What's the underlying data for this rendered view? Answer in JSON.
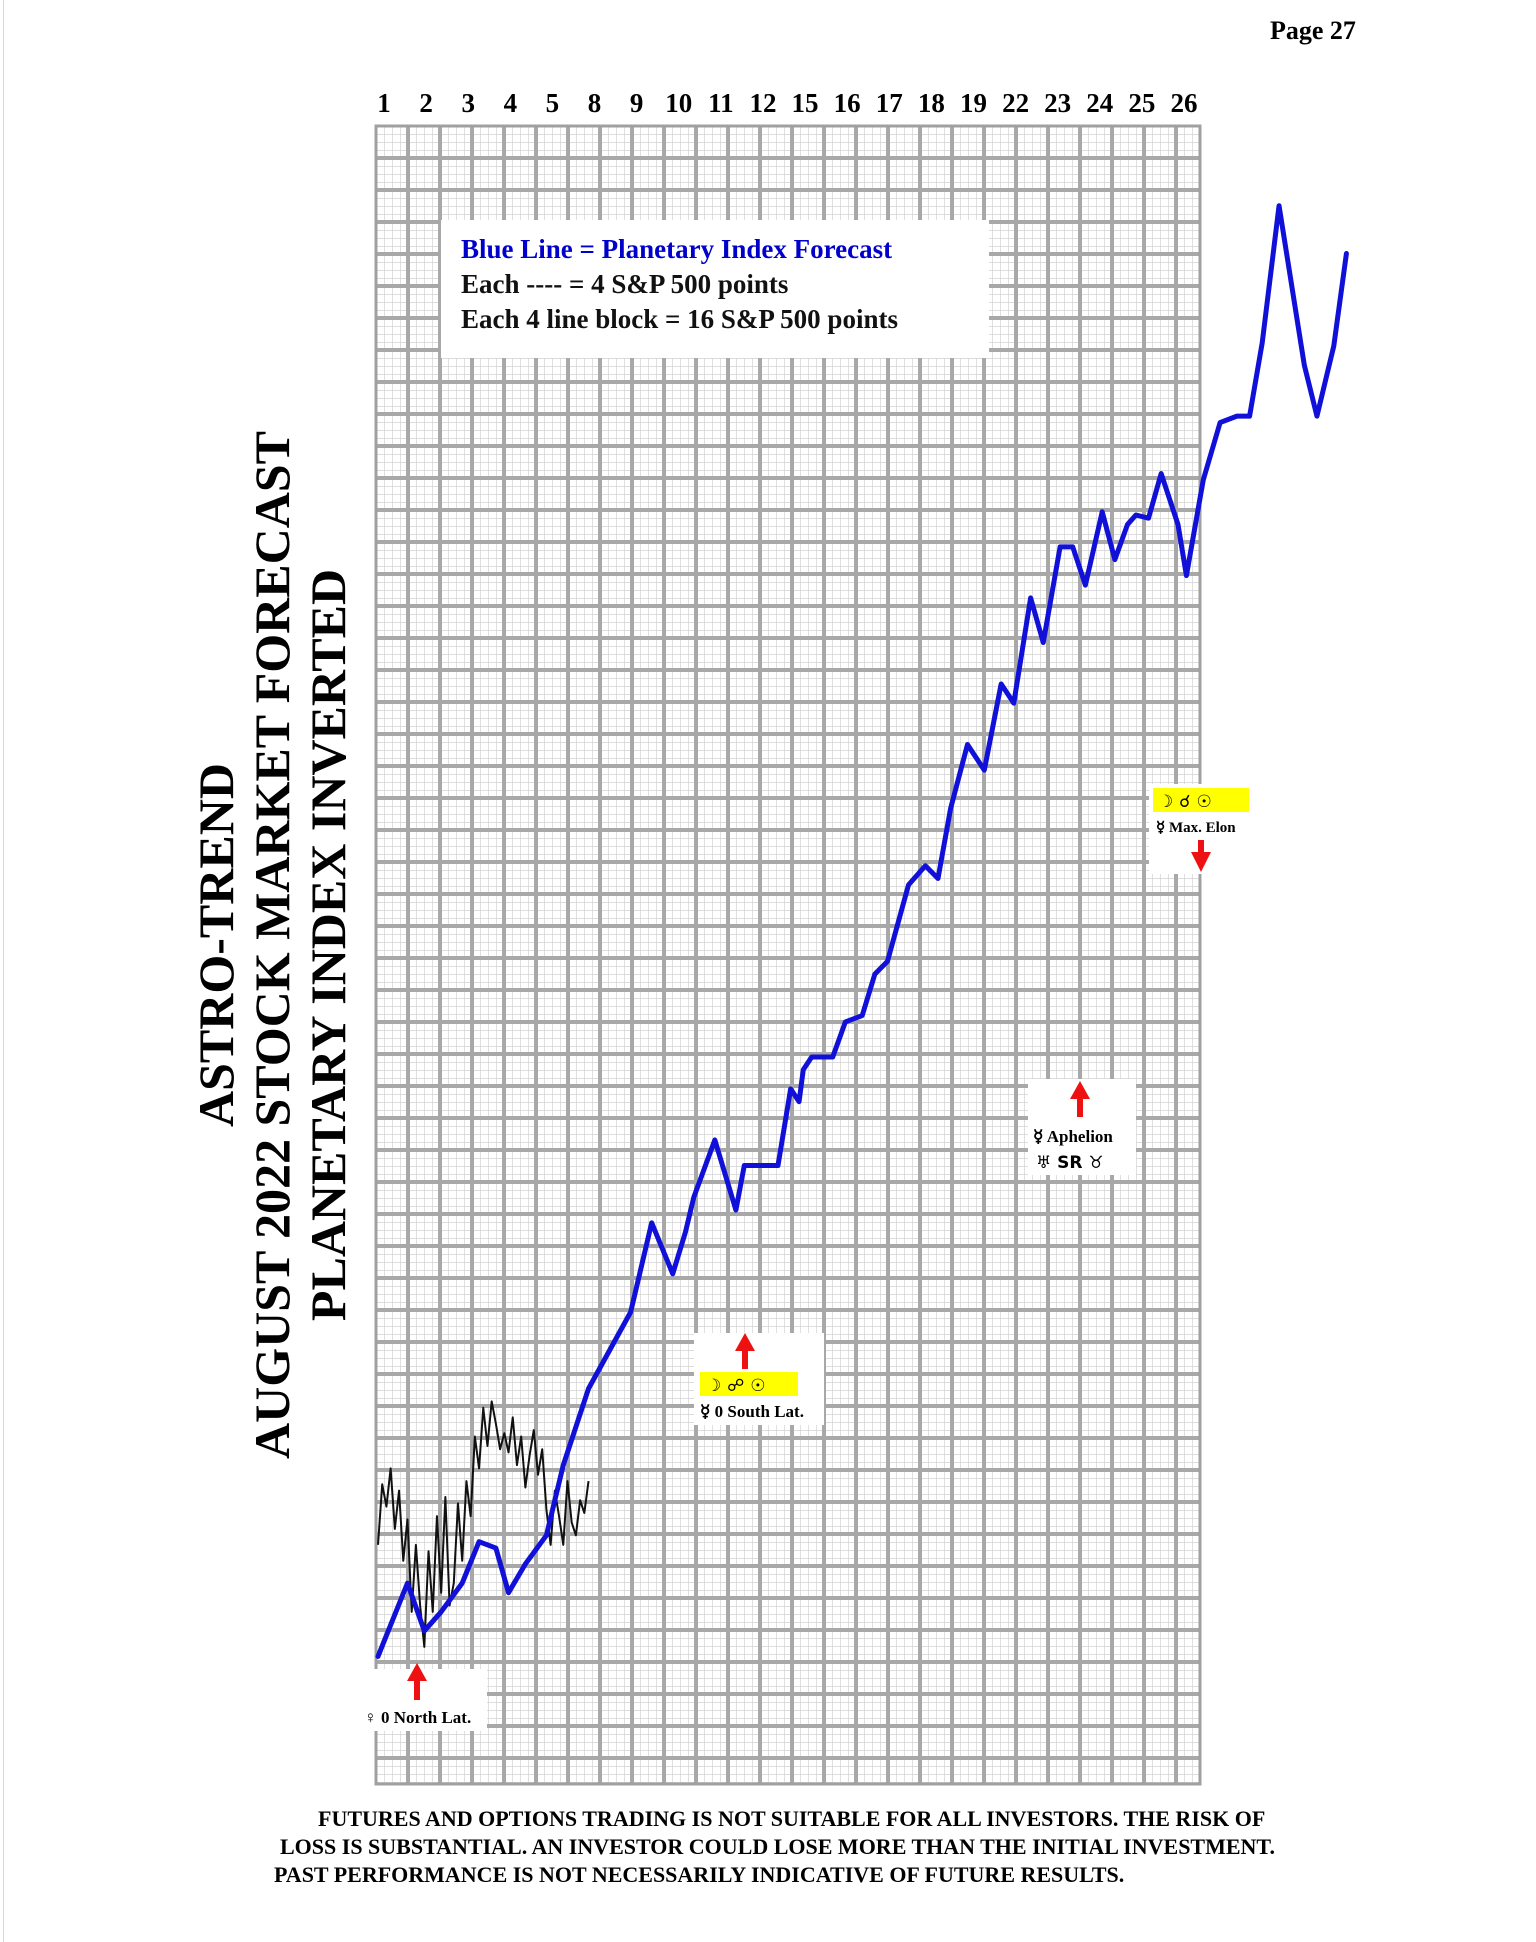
{
  "page_label": "Page  27",
  "title_lines": [
    "ASTRO-TREND",
    "AUGUST 2022  STOCK MARKET FORECAST",
    "PLANETARY INDEX INVERTED"
  ],
  "legend": {
    "line1": "Blue Line = Planetary Index Forecast",
    "line2": "Each ---- =   4 S&P 500 points",
    "line3": "Each 4 line block =  16  S&P 500 points"
  },
  "annotations": {
    "venus_north": "♀ 0 North Lat.",
    "moon_opp_sun": "☽ ☍ ☉",
    "mercury_south": "☿ 0 South Lat.",
    "mercury_aphelion": "☿ Aphelion",
    "uranus_sr_taurus": "♅ SR ♉",
    "moon_conj_sun": "☽ ☌ ☉",
    "mercury_max_elong": "☿ Max. Elon"
  },
  "disclaimer": [
    "FUTURES AND OPTIONS TRADING IS NOT SUITABLE FOR ALL INVESTORS.  THE RISK OF",
    "LOSS IS SUBSTANTIAL.  AN INVESTOR COULD LOSE MORE THAN THE INITIAL INVESTMENT.",
    "PAST PERFORMANCE IS NOT NECESSARILY INDICATIVE OF FUTURE RESULTS."
  ],
  "colors": {
    "forecast_line": "#1010d8",
    "actual_line": "#111111",
    "grid_minor": "#d4d4d4",
    "grid_major": "#a8a8a8",
    "grid_background": "#ececec",
    "highlight": "#ffff00",
    "arrow": "#ee1111",
    "legend_title": "#0000cc"
  },
  "chart_data": {
    "type": "line",
    "x_tick_labels": [
      "1",
      "2",
      "3",
      "4",
      "5",
      "8",
      "9",
      "10",
      "11",
      "12",
      "15",
      "16",
      "17",
      "18",
      "19",
      "22",
      "23",
      "24",
      "25",
      "26"
    ],
    "y_units": "S&P 500 points",
    "y_minor_step": 4,
    "y_major_step": 16,
    "ylim": [
      0,
      1040
    ],
    "grid": true,
    "series": [
      {
        "name": "Blue Line = Planetary Index Forecast",
        "x": [
          1.0,
          1.7,
          2.1,
          2.5,
          3.0,
          3.4,
          3.8,
          4.1,
          4.5,
          5.0,
          5.4,
          6.0,
          6.5,
          7.0,
          7.5,
          8.0,
          8.3,
          8.5,
          9.0,
          9.5,
          9.7,
          10.0,
          10.5,
          10.8,
          11.0,
          11.1,
          11.3,
          11.8,
          12.1,
          12.5,
          12.8,
          13.1,
          13.6,
          14.0,
          14.3,
          14.6,
          15.0,
          15.4,
          15.8,
          16.1,
          16.5,
          16.8,
          17.2,
          17.5,
          17.8,
          18.2,
          18.5,
          18.8,
          19.0,
          19.3,
          19.6,
          20.0,
          20.2,
          20.6,
          21.0,
          21.4,
          21.7,
          22.0,
          22.4,
          23.0,
          23.3,
          23.7,
          24.0
        ],
        "y": [
          80,
          126,
          96,
          108,
          126,
          152,
          148,
          120,
          138,
          156,
          200,
          248,
          272,
          296,
          352,
          320,
          346,
          368,
          404,
          360,
          388,
          388,
          388,
          436,
          428,
          448,
          456,
          456,
          478,
          482,
          508,
          516,
          564,
          576,
          568,
          612,
          652,
          636,
          690,
          678,
          744,
          716,
          776,
          776,
          752,
          798,
          768,
          790,
          796,
          794,
          822,
          790,
          758,
          818,
          854,
          858,
          858,
          904,
          990,
          890,
          858,
          902,
          960
        ]
      }
    ],
    "actual_series": {
      "name": "",
      "x": [
        1.0,
        1.1,
        1.2,
        1.3,
        1.4,
        1.5,
        1.6,
        1.7,
        1.8,
        1.9,
        2.0,
        2.1,
        2.2,
        2.3,
        2.4,
        2.5,
        2.6,
        2.7,
        2.8,
        2.9,
        3.0,
        3.1,
        3.2,
        3.3,
        3.4,
        3.5,
        3.6,
        3.7,
        3.8,
        3.9,
        4.0,
        4.1,
        4.2,
        4.3,
        4.4,
        4.5,
        4.6,
        4.7,
        4.8,
        4.9,
        5.0,
        5.1,
        5.2,
        5.3,
        5.4,
        5.5,
        5.6,
        5.7,
        5.8,
        5.9,
        6.0
      ],
      "y": [
        150,
        188,
        174,
        198,
        160,
        184,
        140,
        166,
        108,
        150,
        112,
        86,
        146,
        108,
        168,
        120,
        180,
        112,
        126,
        176,
        140,
        190,
        168,
        218,
        198,
        236,
        212,
        240,
        226,
        210,
        220,
        208,
        230,
        200,
        218,
        186,
        206,
        222,
        194,
        210,
        172,
        150,
        184,
        168,
        150,
        190,
        164,
        156,
        178,
        170,
        190
      ]
    },
    "annotations": [
      {
        "text": "♀ 0 North Lat.",
        "x": 2.1,
        "arrow": "up"
      },
      {
        "text": "☽ ☍ ☉ / ☿ 0 South Lat.",
        "x": 10.8,
        "arrow": "up"
      },
      {
        "text": "☿ Aphelion / ♅ SR ♉",
        "x": 21.7,
        "arrow": "up"
      },
      {
        "text": "☽ ☌ ☉ / ☿ Max. Elon",
        "x": 24.0,
        "arrow": "down"
      }
    ]
  }
}
